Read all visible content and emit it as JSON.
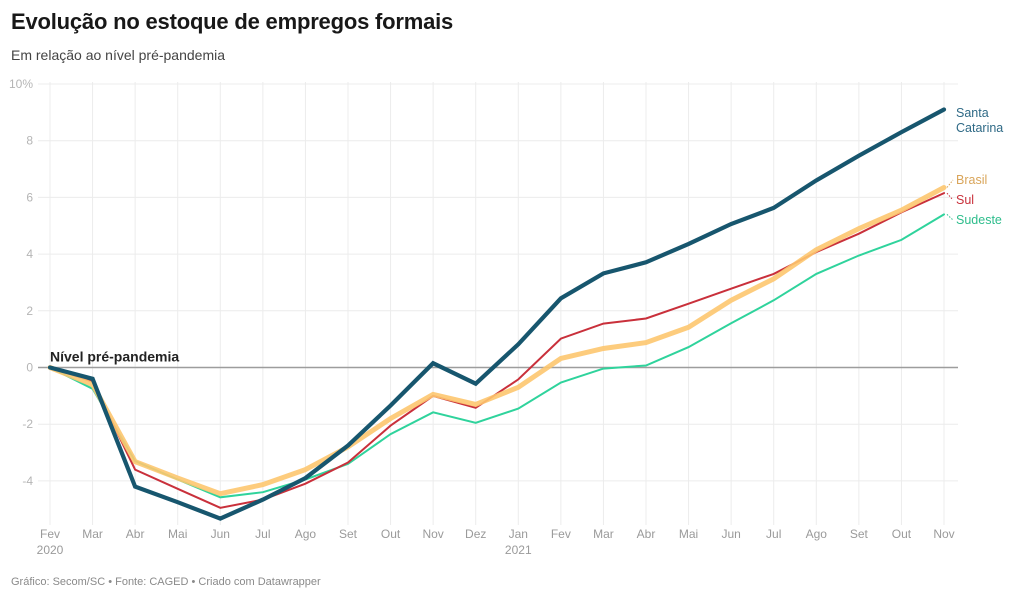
{
  "header": {
    "title": "Evolução no estoque de empregos formais",
    "subtitle": "Em relação ao nível pré-pandemia"
  },
  "footer": {
    "credit": "Gráfico: Secom/SC • Fonte: CAGED • Criado com Datawrapper"
  },
  "chart_data": {
    "type": "line",
    "title": "Evolução no estoque de empregos formais",
    "subtitle": "Em relação ao nível pré-pandemia",
    "xlabel": "",
    "ylabel": "",
    "ylim": [
      -5.3,
      10
    ],
    "yticks": [
      10,
      8,
      6,
      4,
      2,
      0,
      -2,
      -4
    ],
    "ytick_labels": [
      "10%",
      "8",
      "6",
      "4",
      "2",
      "0",
      "-2",
      "-4"
    ],
    "grid": true,
    "x": [
      "Fev",
      "Mar",
      "Abr",
      "Mai",
      "Jun",
      "Jul",
      "Ago",
      "Set",
      "Out",
      "Nov",
      "Dez",
      "Jan",
      "Fev",
      "Mar",
      "Abr",
      "Mai",
      "Jun",
      "Jul",
      "Ago",
      "Set",
      "Out",
      "Nov"
    ],
    "x_sublabels": {
      "0": "2020",
      "11": "2021"
    },
    "reference_line": {
      "value": 0,
      "label": "Nível pré-pandemia"
    },
    "legend_placement": "right-end-labels",
    "series": [
      {
        "name": "Sudeste",
        "label_lines": [
          "Sudeste"
        ],
        "color": "#2fd39c",
        "label_color": "#2ebd8c",
        "width": "thin",
        "values": [
          0,
          -0.75,
          -3.3,
          -3.95,
          -4.58,
          -4.4,
          -3.95,
          -3.4,
          -2.35,
          -1.58,
          -1.95,
          -1.45,
          -0.53,
          -0.04,
          0.07,
          0.72,
          1.56,
          2.37,
          3.3,
          3.95,
          4.5,
          5.4
        ]
      },
      {
        "name": "Sul",
        "label_lines": [
          "Sul"
        ],
        "color": "#c9303b",
        "label_color": "#c9303b",
        "width": "thin",
        "values": [
          0,
          -0.5,
          -3.6,
          -4.28,
          -4.95,
          -4.66,
          -4.1,
          -3.35,
          -2.05,
          -1.0,
          -1.42,
          -0.42,
          1.02,
          1.55,
          1.73,
          2.25,
          2.78,
          3.3,
          4.07,
          4.72,
          5.47,
          6.15
        ]
      },
      {
        "name": "Brasil",
        "label_lines": [
          "Brasil"
        ],
        "color": "#fdc66f",
        "label_color": "#d9a55a",
        "width": "thick",
        "values": [
          0,
          -0.6,
          -3.32,
          -3.9,
          -4.45,
          -4.13,
          -3.6,
          -2.8,
          -1.8,
          -0.95,
          -1.3,
          -0.7,
          0.32,
          0.67,
          0.88,
          1.42,
          2.37,
          3.13,
          4.15,
          4.9,
          5.55,
          6.35
        ]
      },
      {
        "name": "Santa Catarina",
        "label_lines": [
          "Santa",
          "Catarina"
        ],
        "color": "#17566e",
        "label_color": "#2f6a86",
        "width": "thicker",
        "values": [
          0,
          -0.4,
          -4.2,
          -4.75,
          -5.33,
          -4.66,
          -3.9,
          -2.75,
          -1.34,
          0.15,
          -0.57,
          0.82,
          2.44,
          3.32,
          3.71,
          4.36,
          5.06,
          5.63,
          6.6,
          7.47,
          8.3,
          9.1
        ]
      }
    ]
  }
}
